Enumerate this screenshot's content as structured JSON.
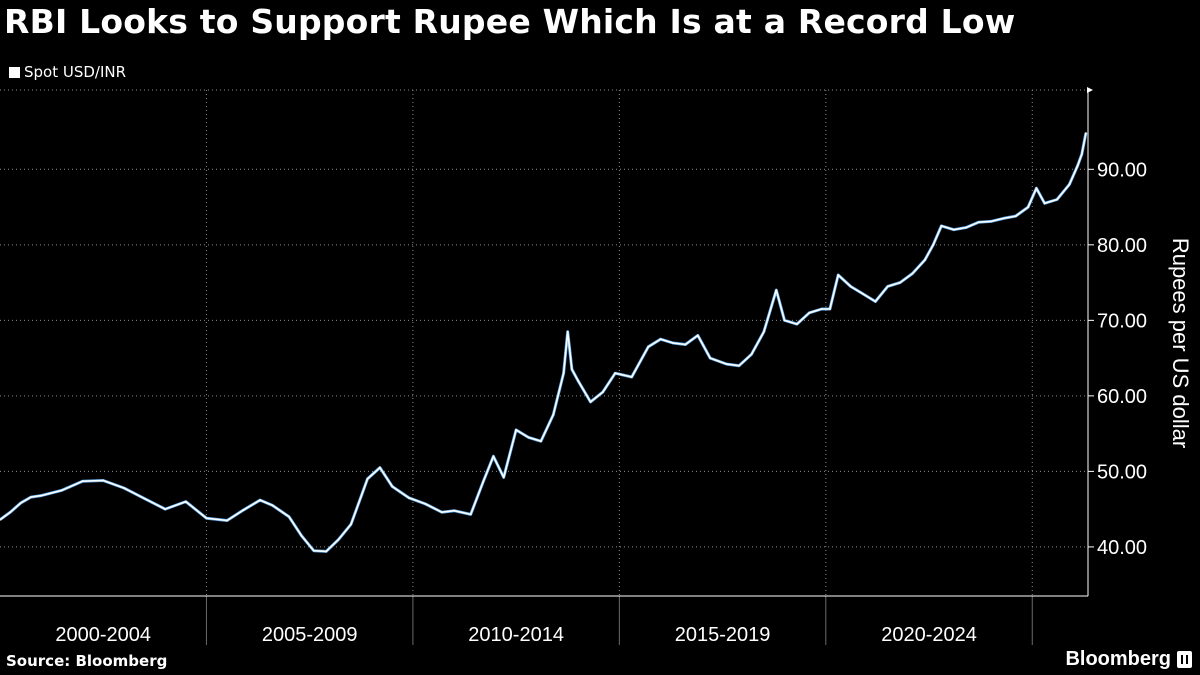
{
  "header": {
    "title": "RBI Looks to Support Rupee Which Is at a Record Low",
    "legend_label": "Spot USD/INR"
  },
  "footer": {
    "source": "Source: Bloomberg",
    "brand": "Bloomberg"
  },
  "colors": {
    "background": "#000000",
    "line": "#ffffff",
    "line_accent": "#5ea8e8",
    "grid": "#8a8a8a"
  },
  "chart_data": {
    "type": "line",
    "title": "RBI Looks to Support Rupee Which Is at a Record Low",
    "xlabel": "",
    "ylabel": "Rupees per US dollar",
    "ylim": [
      33.5,
      100.5
    ],
    "xlim": [
      2000.0,
      2026.35
    ],
    "yticks": [
      40,
      50,
      60,
      70,
      80,
      90
    ],
    "ytick_labels": [
      "40.00",
      "50.00",
      "60.00",
      "70.00",
      "80.00",
      "90.00"
    ],
    "x_period_boundaries": [
      2005,
      2010,
      2015,
      2020,
      2025
    ],
    "x_period_labels": [
      {
        "label": "2000-2004",
        "center": 2002.5
      },
      {
        "label": "2005-2009",
        "center": 2007.5
      },
      {
        "label": "2010-2014",
        "center": 2012.5
      },
      {
        "label": "2015-2019",
        "center": 2017.5
      },
      {
        "label": "2020-2024",
        "center": 2022.5
      }
    ],
    "series": [
      {
        "name": "Spot USD/INR",
        "x": [
          2000.0,
          2000.25,
          2000.5,
          2000.75,
          2001.0,
          2001.5,
          2002.0,
          2002.5,
          2003.0,
          2003.5,
          2004.0,
          2004.5,
          2005.0,
          2005.5,
          2005.9,
          2006.3,
          2006.6,
          2007.0,
          2007.3,
          2007.6,
          2007.9,
          2008.2,
          2008.5,
          2008.9,
          2009.2,
          2009.5,
          2009.9,
          2010.3,
          2010.7,
          2011.0,
          2011.4,
          2011.7,
          2011.95,
          2012.2,
          2012.5,
          2012.8,
          2013.1,
          2013.4,
          2013.65,
          2013.75,
          2013.85,
          2014.0,
          2014.3,
          2014.6,
          2014.9,
          2015.3,
          2015.7,
          2016.0,
          2016.3,
          2016.6,
          2016.9,
          2017.2,
          2017.6,
          2017.9,
          2018.2,
          2018.5,
          2018.8,
          2019.0,
          2019.3,
          2019.6,
          2019.9,
          2020.1,
          2020.3,
          2020.6,
          2020.9,
          2021.2,
          2021.5,
          2021.8,
          2022.1,
          2022.4,
          2022.6,
          2022.8,
          2023.1,
          2023.4,
          2023.7,
          2024.0,
          2024.3,
          2024.6,
          2024.9,
          2025.1,
          2025.3,
          2025.6,
          2025.9,
          2026.1,
          2026.2,
          2026.3
        ],
        "values": [
          43.6,
          44.6,
          45.8,
          46.6,
          46.8,
          47.5,
          48.7,
          48.8,
          47.8,
          46.4,
          45.0,
          46.0,
          43.8,
          43.5,
          44.9,
          46.2,
          45.5,
          44.0,
          41.5,
          39.5,
          39.4,
          41.0,
          43.0,
          49.0,
          50.5,
          48.0,
          46.5,
          45.7,
          44.6,
          44.8,
          44.3,
          48.6,
          52.0,
          49.2,
          55.5,
          54.5,
          54.0,
          57.5,
          63.0,
          68.5,
          63.5,
          62.0,
          59.2,
          60.5,
          63.0,
          62.5,
          66.5,
          67.5,
          67.0,
          66.8,
          68.0,
          65.0,
          64.2,
          64.0,
          65.5,
          68.5,
          74.0,
          70.0,
          69.5,
          71.0,
          71.5,
          71.5,
          76.0,
          74.5,
          73.5,
          72.5,
          74.5,
          75.0,
          76.2,
          78.0,
          80.0,
          82.5,
          82.0,
          82.3,
          83.0,
          83.1,
          83.5,
          83.8,
          85.0,
          87.5,
          85.5,
          86.0,
          88.0,
          90.5,
          92.0,
          94.8
        ]
      }
    ]
  }
}
